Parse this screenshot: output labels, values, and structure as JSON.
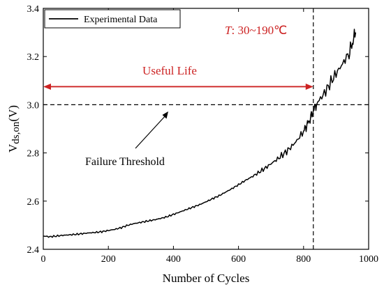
{
  "chart_data": {
    "type": "line",
    "xlabel": "Number of Cycles",
    "ylabel_main": "V",
    "ylabel_sub": "ds,on",
    "ylabel_unit": "(V)",
    "xlim": [
      0,
      1000
    ],
    "ylim": [
      2.4,
      3.4
    ],
    "xticks": [
      "0",
      "200",
      "400",
      "600",
      "800",
      "1000"
    ],
    "yticks": [
      "2.4",
      "2.6",
      "2.8",
      "3.0",
      "3.2",
      "3.4"
    ],
    "legend": {
      "label": "Experimental Data",
      "placement": "top-left"
    },
    "series": [
      {
        "name": "Experimental Data",
        "color": "#000000",
        "x": [
          0,
          20,
          40,
          60,
          80,
          100,
          120,
          140,
          160,
          180,
          200,
          220,
          240,
          260,
          280,
          300,
          320,
          340,
          360,
          380,
          400,
          420,
          440,
          460,
          480,
          500,
          520,
          540,
          560,
          580,
          600,
          620,
          640,
          660,
          680,
          700,
          720,
          740,
          760,
          780,
          800,
          810,
          820,
          830,
          840,
          860,
          880,
          900,
          920,
          940,
          950,
          960
        ],
        "y": [
          2.455,
          2.452,
          2.455,
          2.458,
          2.46,
          2.462,
          2.465,
          2.468,
          2.47,
          2.473,
          2.478,
          2.483,
          2.49,
          2.5,
          2.507,
          2.512,
          2.517,
          2.522,
          2.528,
          2.535,
          2.545,
          2.555,
          2.565,
          2.575,
          2.585,
          2.597,
          2.61,
          2.622,
          2.637,
          2.652,
          2.668,
          2.685,
          2.7,
          2.717,
          2.735,
          2.755,
          2.775,
          2.797,
          2.822,
          2.852,
          2.89,
          2.915,
          2.94,
          2.975,
          3.005,
          3.04,
          3.085,
          3.13,
          3.17,
          3.215,
          3.255,
          3.3
        ]
      }
    ],
    "threshold": {
      "y": 3.0,
      "style": "dashed"
    },
    "end_of_life": {
      "x": 830,
      "style": "dashed"
    },
    "annotations": {
      "temperature_italic": "T",
      "temperature_rest": ": 30~190℃",
      "useful_life": "Useful Life",
      "failure_threshold": "Failure Threshold"
    },
    "colors": {
      "useful_life": "#cc2222",
      "line": "#000000"
    }
  }
}
